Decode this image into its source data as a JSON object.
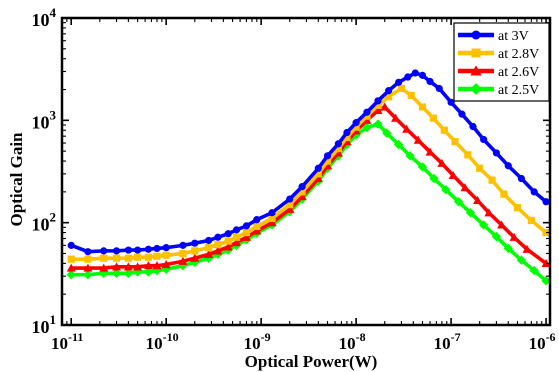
{
  "chart_data": {
    "type": "line",
    "title": "",
    "xlabel": "Optical Power(W)",
    "ylabel": "Optical Gain",
    "x_scale": "log",
    "y_scale": "log",
    "xlim": [
      8e-12,
      1.1e-06
    ],
    "ylim": [
      10,
      10000
    ],
    "grid": false,
    "legend_position": "top-right",
    "x_ticks": [
      {
        "value": 1e-11,
        "base": "10",
        "exp": "-11"
      },
      {
        "value": 1e-10,
        "base": "10",
        "exp": "-10"
      },
      {
        "value": 1e-09,
        "base": "10",
        "exp": "-9"
      },
      {
        "value": 1e-08,
        "base": "10",
        "exp": "-8"
      },
      {
        "value": 1e-07,
        "base": "10",
        "exp": "-7"
      },
      {
        "value": 1e-06,
        "base": "10",
        "exp": "-6"
      }
    ],
    "y_ticks": [
      {
        "value": 10,
        "base": "10",
        "exp": "1"
      },
      {
        "value": 100,
        "base": "10",
        "exp": "2"
      },
      {
        "value": 1000,
        "base": "10",
        "exp": "3"
      },
      {
        "value": 10000,
        "base": "10",
        "exp": "4"
      }
    ],
    "series": [
      {
        "name": "at 3V",
        "color": "#0000ff",
        "marker": "circle",
        "points": [
          [
            1e-11,
            60
          ],
          [
            1.5e-11,
            52
          ],
          [
            2.2e-11,
            53
          ],
          [
            3e-11,
            53
          ],
          [
            4e-11,
            54
          ],
          [
            5e-11,
            54
          ],
          [
            6.5e-11,
            55
          ],
          [
            8e-11,
            56
          ],
          [
            1e-10,
            57
          ],
          [
            1.5e-10,
            60
          ],
          [
            2e-10,
            63
          ],
          [
            2.8e-10,
            67
          ],
          [
            3.5e-10,
            72
          ],
          [
            4.5e-10,
            78
          ],
          [
            5.5e-10,
            85
          ],
          [
            7e-10,
            93
          ],
          [
            9e-10,
            107
          ],
          [
            1.3e-09,
            125
          ],
          [
            2e-09,
            170
          ],
          [
            2.7e-09,
            225
          ],
          [
            4e-09,
            340
          ],
          [
            5e-09,
            450
          ],
          [
            6.5e-09,
            590
          ],
          [
            8e-09,
            760
          ],
          [
            1e-08,
            950
          ],
          [
            1.3e-08,
            1200
          ],
          [
            1.7e-08,
            1550
          ],
          [
            2.2e-08,
            1950
          ],
          [
            2.8e-08,
            2350
          ],
          [
            3.5e-08,
            2650
          ],
          [
            4.2e-08,
            2900
          ],
          [
            5e-08,
            2750
          ],
          [
            6e-08,
            2400
          ],
          [
            7.5e-08,
            2050
          ],
          [
            1e-07,
            1500
          ],
          [
            1.3e-07,
            1150
          ],
          [
            1.7e-07,
            870
          ],
          [
            2.2e-07,
            650
          ],
          [
            3e-07,
            480
          ],
          [
            4e-07,
            360
          ],
          [
            5.5e-07,
            270
          ],
          [
            7.5e-07,
            200
          ],
          [
            1e-06,
            160
          ]
        ]
      },
      {
        "name": "at 2.8V",
        "color": "#ffc000",
        "marker": "square",
        "points": [
          [
            1e-11,
            44
          ],
          [
            1.5e-11,
            44
          ],
          [
            2.2e-11,
            45
          ],
          [
            3e-11,
            45
          ],
          [
            4e-11,
            45
          ],
          [
            5e-11,
            46
          ],
          [
            6.5e-11,
            46
          ],
          [
            8e-11,
            47
          ],
          [
            1e-10,
            48
          ],
          [
            1.5e-10,
            50
          ],
          [
            2e-10,
            53
          ],
          [
            2.8e-10,
            57
          ],
          [
            3.5e-10,
            61
          ],
          [
            4.5e-10,
            66
          ],
          [
            5.5e-10,
            72
          ],
          [
            7e-10,
            80
          ],
          [
            9e-10,
            92
          ],
          [
            1.3e-09,
            110
          ],
          [
            2e-09,
            150
          ],
          [
            2.7e-09,
            200
          ],
          [
            4e-09,
            300
          ],
          [
            5e-09,
            400
          ],
          [
            6.5e-09,
            530
          ],
          [
            8e-09,
            680
          ],
          [
            1e-08,
            860
          ],
          [
            1.3e-08,
            1100
          ],
          [
            1.7e-08,
            1400
          ],
          [
            2.2e-08,
            1700
          ],
          [
            3e-08,
            2050
          ],
          [
            3.8e-08,
            1750
          ],
          [
            5e-08,
            1350
          ],
          [
            6.5e-08,
            1050
          ],
          [
            8.5e-08,
            800
          ],
          [
            1.1e-07,
            620
          ],
          [
            1.5e-07,
            460
          ],
          [
            2e-07,
            340
          ],
          [
            2.7e-07,
            260
          ],
          [
            3.6e-07,
            190
          ],
          [
            5e-07,
            140
          ],
          [
            7e-07,
            105
          ],
          [
            1e-06,
            80
          ]
        ]
      },
      {
        "name": "at 2.6V",
        "color": "#ff0000",
        "marker": "triangle",
        "points": [
          [
            1e-11,
            36
          ],
          [
            1.5e-11,
            36
          ],
          [
            2.2e-11,
            36
          ],
          [
            3e-11,
            37
          ],
          [
            4e-11,
            37
          ],
          [
            5e-11,
            37
          ],
          [
            6.5e-11,
            38
          ],
          [
            8e-11,
            38
          ],
          [
            1e-10,
            39
          ],
          [
            1.5e-10,
            42
          ],
          [
            2e-10,
            45
          ],
          [
            2.8e-10,
            49
          ],
          [
            3.5e-10,
            53
          ],
          [
            4.5e-10,
            58
          ],
          [
            5.5e-10,
            64
          ],
          [
            7e-10,
            72
          ],
          [
            9e-10,
            83
          ],
          [
            1.3e-09,
            100
          ],
          [
            2e-09,
            135
          ],
          [
            2.7e-09,
            180
          ],
          [
            4e-09,
            270
          ],
          [
            5e-09,
            360
          ],
          [
            6.5e-09,
            480
          ],
          [
            8e-09,
            620
          ],
          [
            1e-08,
            790
          ],
          [
            1.3e-08,
            1000
          ],
          [
            1.7e-08,
            1250
          ],
          [
            2e-08,
            1350
          ],
          [
            2.6e-08,
            1050
          ],
          [
            3.4e-08,
            820
          ],
          [
            4.5e-08,
            640
          ],
          [
            6e-08,
            490
          ],
          [
            8e-08,
            380
          ],
          [
            1.05e-07,
            290
          ],
          [
            1.4e-07,
            220
          ],
          [
            1.9e-07,
            165
          ],
          [
            2.5e-07,
            125
          ],
          [
            3.4e-07,
            95
          ],
          [
            4.6e-07,
            72
          ],
          [
            6.3e-07,
            55
          ],
          [
            1e-06,
            40
          ]
        ]
      },
      {
        "name": "at 2.5V",
        "color": "#00ff00",
        "marker": "diamond",
        "points": [
          [
            1e-11,
            31
          ],
          [
            1.5e-11,
            31
          ],
          [
            2.2e-11,
            32
          ],
          [
            3e-11,
            32
          ],
          [
            4e-11,
            32
          ],
          [
            5e-11,
            33
          ],
          [
            6.5e-11,
            33
          ],
          [
            8e-11,
            34
          ],
          [
            1e-10,
            35
          ],
          [
            1.5e-10,
            38
          ],
          [
            2e-10,
            41
          ],
          [
            2.8e-10,
            45
          ],
          [
            3.5e-10,
            49
          ],
          [
            4.5e-10,
            54
          ],
          [
            5.5e-10,
            60
          ],
          [
            7e-10,
            68
          ],
          [
            9e-10,
            79
          ],
          [
            1.3e-09,
            95
          ],
          [
            2e-09,
            128
          ],
          [
            2.7e-09,
            170
          ],
          [
            4e-09,
            255
          ],
          [
            5e-09,
            340
          ],
          [
            6.5e-09,
            450
          ],
          [
            8e-09,
            580
          ],
          [
            1e-08,
            720
          ],
          [
            1.3e-08,
            850
          ],
          [
            1.7e-08,
            920
          ],
          [
            2.1e-08,
            750
          ],
          [
            2.8e-08,
            580
          ],
          [
            3.7e-08,
            450
          ],
          [
            5e-08,
            350
          ],
          [
            6.6e-08,
            270
          ],
          [
            8.8e-08,
            210
          ],
          [
            1.2e-07,
            160
          ],
          [
            1.6e-07,
            125
          ],
          [
            2.2e-07,
            95
          ],
          [
            3e-07,
            73
          ],
          [
            4e-07,
            56
          ],
          [
            5.5e-07,
            43
          ],
          [
            7.5e-07,
            34
          ],
          [
            1e-06,
            27
          ]
        ]
      }
    ]
  }
}
